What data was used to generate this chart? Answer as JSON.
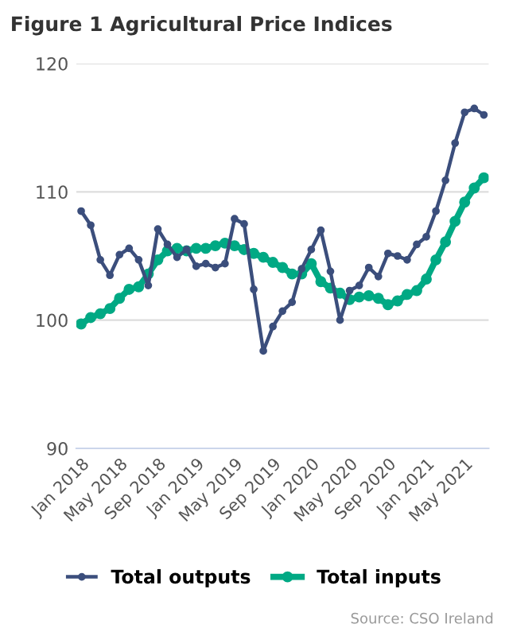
{
  "chart_data": {
    "type": "line",
    "title": "Figure 1 Agricultural Price Indices",
    "categories": [
      "Jan 2018",
      null,
      null,
      null,
      "May 2018",
      null,
      null,
      null,
      "Sep 2018",
      null,
      null,
      null,
      "Jan 2019",
      null,
      null,
      null,
      "May 2019",
      null,
      null,
      null,
      "Sep 2019",
      null,
      null,
      null,
      "Jan 2020",
      null,
      null,
      null,
      "May 2020",
      null,
      null,
      null,
      "Sep 2020",
      null,
      null,
      null,
      "Jan 2021",
      null,
      null,
      null,
      "May 2021",
      null,
      null
    ],
    "series": [
      {
        "name": "Total outputs",
        "color": "#3b4e7c",
        "values": [
          108.5,
          107.4,
          104.7,
          103.5,
          105.1,
          105.6,
          104.7,
          102.7,
          107.1,
          105.9,
          104.9,
          105.5,
          104.2,
          104.4,
          104.1,
          104.4,
          107.9,
          107.5,
          102.4,
          97.6,
          99.5,
          100.7,
          101.4,
          104.0,
          105.5,
          107.0,
          103.8,
          100.0,
          102.3,
          102.7,
          104.1,
          103.4,
          105.2,
          105.0,
          104.7,
          105.9,
          106.5,
          108.5,
          110.9,
          113.8,
          116.2,
          116.5,
          116.0
        ]
      },
      {
        "name": "Total inputs",
        "color": "#00a984",
        "values": [
          99.7,
          100.2,
          100.5,
          100.9,
          101.7,
          102.4,
          102.6,
          103.6,
          104.7,
          105.4,
          105.6,
          105.4,
          105.6,
          105.6,
          105.8,
          106.0,
          105.8,
          105.5,
          105.2,
          104.9,
          104.5,
          104.1,
          103.6,
          103.6,
          104.4,
          103.0,
          102.5,
          102.1,
          101.6,
          101.8,
          101.9,
          101.7,
          101.2,
          101.5,
          102.0,
          102.3,
          103.2,
          104.7,
          106.1,
          107.7,
          109.2,
          110.3,
          111.1
        ]
      }
    ],
    "ylim": [
      90,
      120
    ],
    "yticks": [
      90,
      100,
      110,
      120
    ],
    "grid": "y",
    "legend": "bottom",
    "marker": "circle",
    "line_style": "solid",
    "annotations": [
      "Source: CSO Ireland"
    ]
  }
}
